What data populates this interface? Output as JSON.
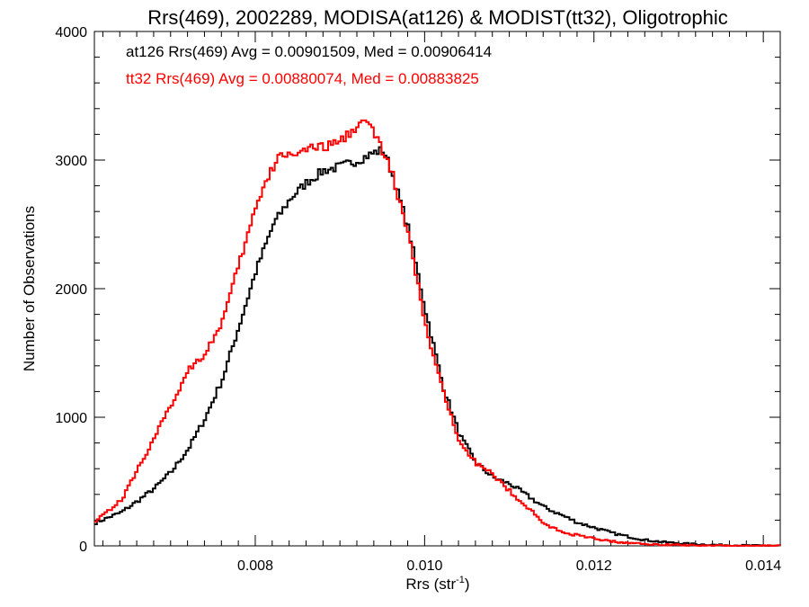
{
  "chart_data": {
    "type": "line",
    "title": "Rrs(469), 2002289, MODISA(at126) & MODIST(tt32), Oligotrophic",
    "xlabel_main": "Rrs (str",
    "xlabel_sup": "-1",
    "xlabel_close": ")",
    "ylabel": "Number of Observations",
    "xlim": [
      0.0061,
      0.0142
    ],
    "ylim": [
      0,
      4000
    ],
    "x_ticks": [
      0.008,
      0.01,
      0.012,
      0.014
    ],
    "x_tick_labels": [
      "0.008",
      "0.010",
      "0.012",
      "0.014"
    ],
    "y_ticks": [
      0,
      1000,
      2000,
      3000,
      4000
    ],
    "y_tick_labels": [
      "0",
      "1000",
      "2000",
      "3000",
      "4000"
    ],
    "grid": false,
    "legend_position": "top-left",
    "series": [
      {
        "name": "at126",
        "label": "at126 Rrs(469) Avg = 0.00901509, Med = 0.00906414",
        "color": "#000000",
        "x": [
          0.0061,
          0.0064,
          0.0066,
          0.0068,
          0.007,
          0.0072,
          0.0074,
          0.0076,
          0.0078,
          0.008,
          0.0082,
          0.0084,
          0.0086,
          0.0088,
          0.009,
          0.0092,
          0.0094,
          0.0095,
          0.0096,
          0.0098,
          0.01,
          0.0102,
          0.0104,
          0.0106,
          0.0108,
          0.011,
          0.0112,
          0.0114,
          0.0116,
          0.0118,
          0.012,
          0.0122,
          0.0124,
          0.0126,
          0.0128,
          0.013,
          0.0132,
          0.0134,
          0.0136,
          0.0138,
          0.014,
          0.0142
        ],
        "values": [
          180,
          260,
          350,
          450,
          580,
          760,
          1000,
          1300,
          1720,
          2150,
          2500,
          2700,
          2830,
          2920,
          2950,
          3000,
          3060,
          3080,
          2900,
          2450,
          1820,
          1250,
          860,
          640,
          530,
          480,
          390,
          300,
          240,
          180,
          140,
          100,
          70,
          45,
          30,
          20,
          12,
          8,
          5,
          3,
          2,
          1
        ]
      },
      {
        "name": "tt32",
        "label": "tt32 Rrs(469) Avg = 0.00880074, Med = 0.00883825",
        "color": "#ff0000",
        "x": [
          0.0061,
          0.0064,
          0.0066,
          0.0068,
          0.007,
          0.0072,
          0.0074,
          0.0076,
          0.0078,
          0.008,
          0.0082,
          0.0083,
          0.0084,
          0.0086,
          0.0088,
          0.009,
          0.0092,
          0.0093,
          0.0094,
          0.0096,
          0.0098,
          0.01,
          0.0102,
          0.0104,
          0.0106,
          0.0108,
          0.011,
          0.0112,
          0.0114,
          0.0116,
          0.0118,
          0.012,
          0.0122,
          0.0124,
          0.0126,
          0.0128,
          0.013,
          0.0132,
          0.0134,
          0.0136,
          0.0138,
          0.014,
          0.0142
        ],
        "values": [
          200,
          350,
          600,
          850,
          1100,
          1380,
          1500,
          1750,
          2200,
          2650,
          2950,
          3050,
          3050,
          3080,
          3100,
          3150,
          3280,
          3300,
          3200,
          2900,
          2400,
          1700,
          1200,
          820,
          640,
          550,
          420,
          300,
          170,
          110,
          80,
          55,
          35,
          22,
          15,
          10,
          7,
          5,
          3,
          2,
          1,
          1,
          1
        ]
      }
    ]
  }
}
